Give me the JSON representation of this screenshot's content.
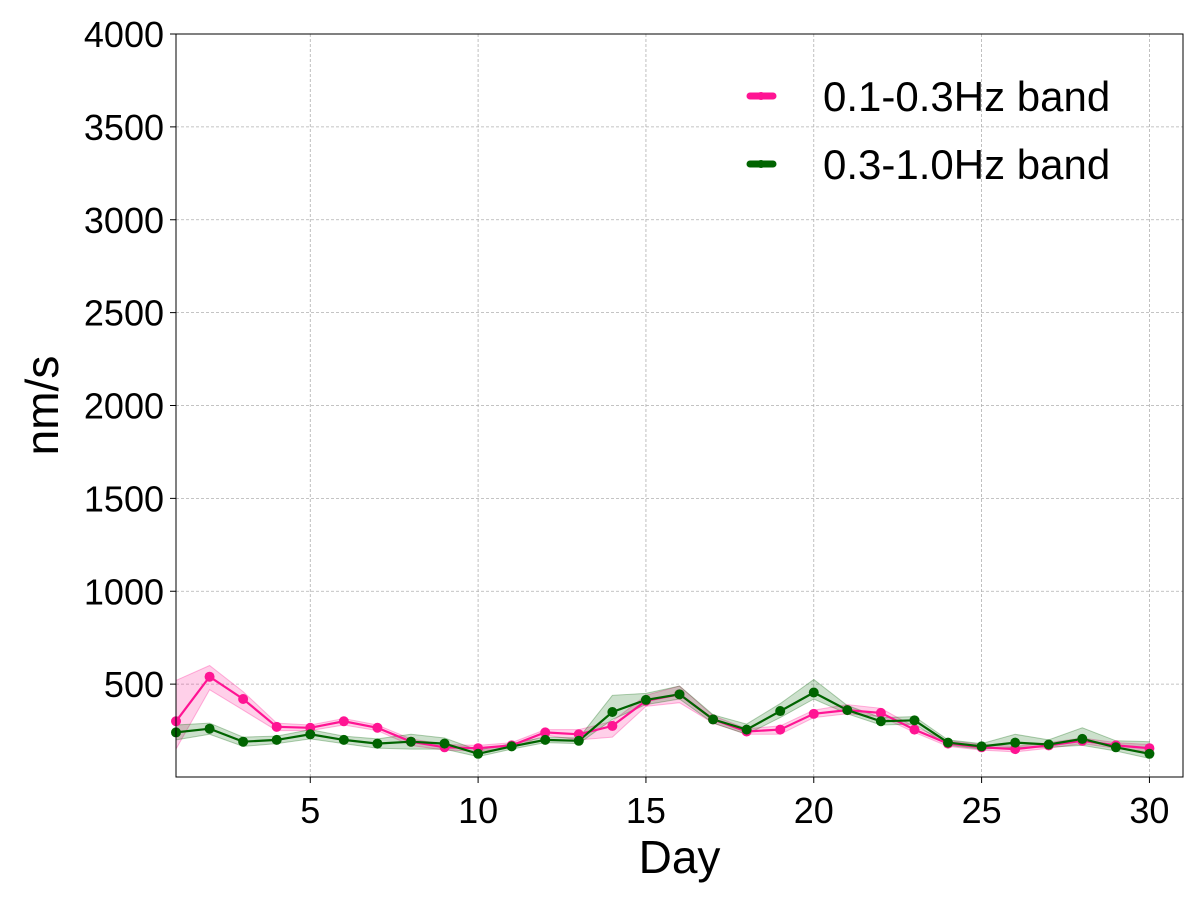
{
  "chart_data": {
    "type": "line",
    "xlabel": "Day",
    "ylabel": "nm/s",
    "xlim": [
      1,
      31
    ],
    "ylim": [
      0,
      4000
    ],
    "xticks": [
      5,
      10,
      15,
      20,
      25,
      30
    ],
    "yticks": [
      500,
      1000,
      1500,
      2000,
      2500,
      3000,
      3500,
      4000
    ],
    "grid": true,
    "legend_position": "top-right",
    "x": [
      1,
      2,
      3,
      4,
      5,
      6,
      7,
      8,
      9,
      10,
      11,
      12,
      13,
      14,
      15,
      16,
      17,
      18,
      19,
      20,
      21,
      22,
      23,
      24,
      25,
      26,
      27,
      28,
      29,
      30
    ],
    "series": [
      {
        "name": "0.1-0.3Hz band",
        "color": "#ff1493",
        "values": [
          300,
          540,
          420,
          270,
          265,
          300,
          265,
          190,
          160,
          155,
          170,
          240,
          230,
          275,
          410,
          445,
          310,
          245,
          255,
          340,
          360,
          345,
          255,
          180,
          160,
          150,
          170,
          195,
          170,
          155
        ],
        "lower": [
          150,
          470,
          360,
          250,
          250,
          280,
          250,
          170,
          145,
          140,
          155,
          225,
          200,
          215,
          380,
          400,
          290,
          230,
          230,
          320,
          340,
          325,
          240,
          165,
          145,
          135,
          155,
          180,
          155,
          135
        ],
        "upper": [
          520,
          600,
          460,
          290,
          280,
          315,
          280,
          205,
          175,
          170,
          185,
          255,
          255,
          300,
          440,
          490,
          330,
          260,
          275,
          360,
          390,
          370,
          270,
          195,
          175,
          165,
          185,
          210,
          185,
          175
        ]
      },
      {
        "name": "0.3-1.0Hz band",
        "color": "#006400",
        "values": [
          240,
          260,
          190,
          200,
          230,
          200,
          180,
          190,
          180,
          125,
          165,
          200,
          195,
          350,
          415,
          445,
          310,
          255,
          355,
          455,
          360,
          300,
          305,
          185,
          165,
          185,
          175,
          205,
          160,
          125
        ],
        "lower": [
          200,
          230,
          165,
          180,
          205,
          180,
          155,
          150,
          150,
          110,
          150,
          185,
          180,
          310,
          390,
          420,
          290,
          230,
          320,
          420,
          340,
          280,
          285,
          170,
          150,
          160,
          160,
          170,
          140,
          100
        ],
        "upper": [
          280,
          290,
          215,
          220,
          255,
          220,
          205,
          230,
          210,
          145,
          180,
          215,
          210,
          440,
          450,
          490,
          335,
          285,
          395,
          525,
          385,
          320,
          325,
          200,
          180,
          230,
          200,
          265,
          195,
          190
        ]
      }
    ]
  }
}
